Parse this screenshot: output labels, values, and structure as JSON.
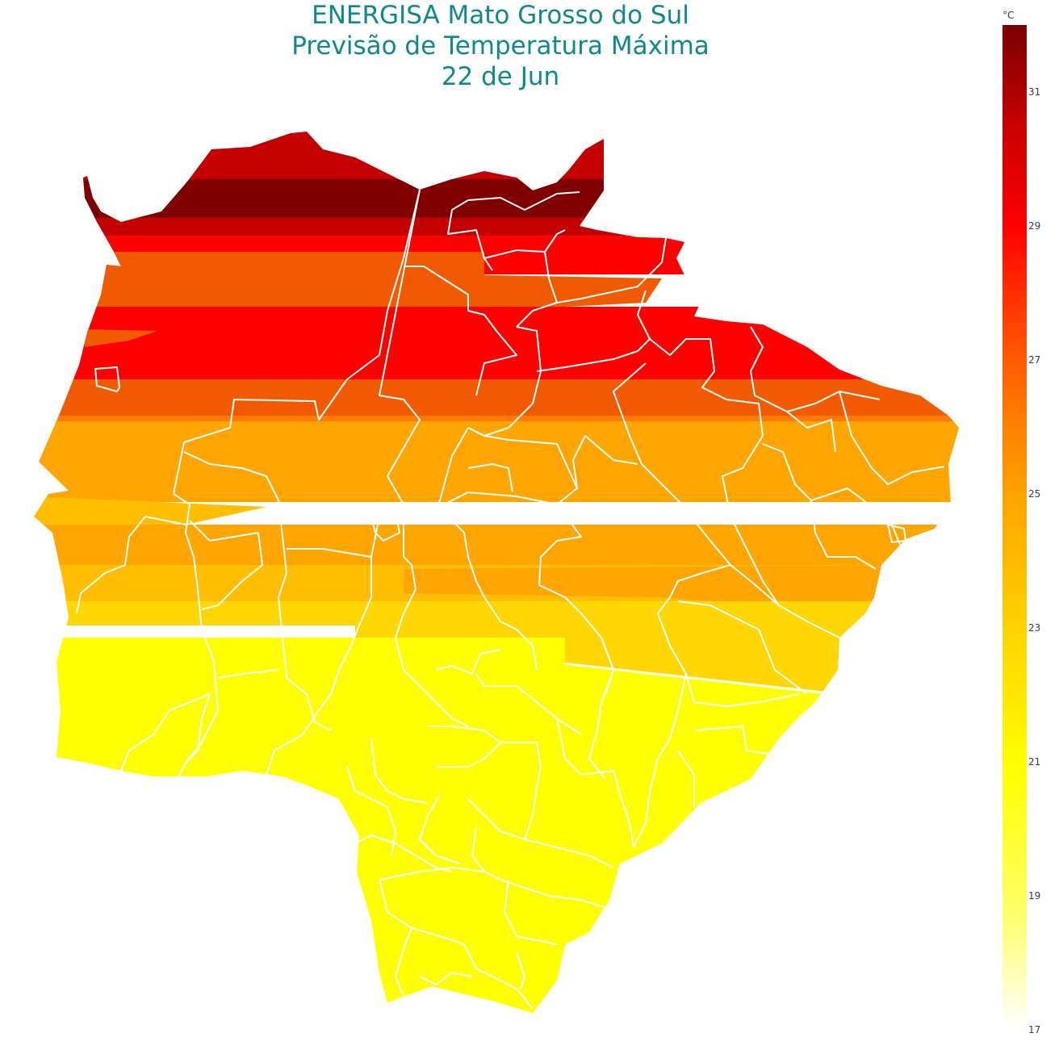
{
  "title": {
    "line1": "ENERGISA Mato Grosso do Sul",
    "line2": "Previsão de Temperatura Máxima",
    "line3": "22 de Jun"
  },
  "colorbar": {
    "unit": "°C",
    "min": 17,
    "max": 32,
    "ticks": [
      "31",
      "29",
      "27",
      "25",
      "23",
      "21",
      "19",
      "17"
    ],
    "tick_values": [
      31,
      29,
      27,
      25,
      23,
      21,
      19,
      17
    ],
    "colorscale": [
      "#ffffff",
      "#ffff66",
      "#ffff00",
      "#ffd200",
      "#ffa500",
      "#ff6000",
      "#ff0000",
      "#c80000",
      "#7a0000"
    ]
  },
  "map_colors": {
    "band_31": "#800000",
    "band_30": "#c40000",
    "band_29": "#ff0000",
    "band_28": "#f25a00",
    "band_26": "#ff7a00",
    "band_25": "#ffa500",
    "band_24": "#ffbf00",
    "band_23": "#ffd700",
    "band_21": "#ffff00",
    "border": "#ffffff"
  }
}
